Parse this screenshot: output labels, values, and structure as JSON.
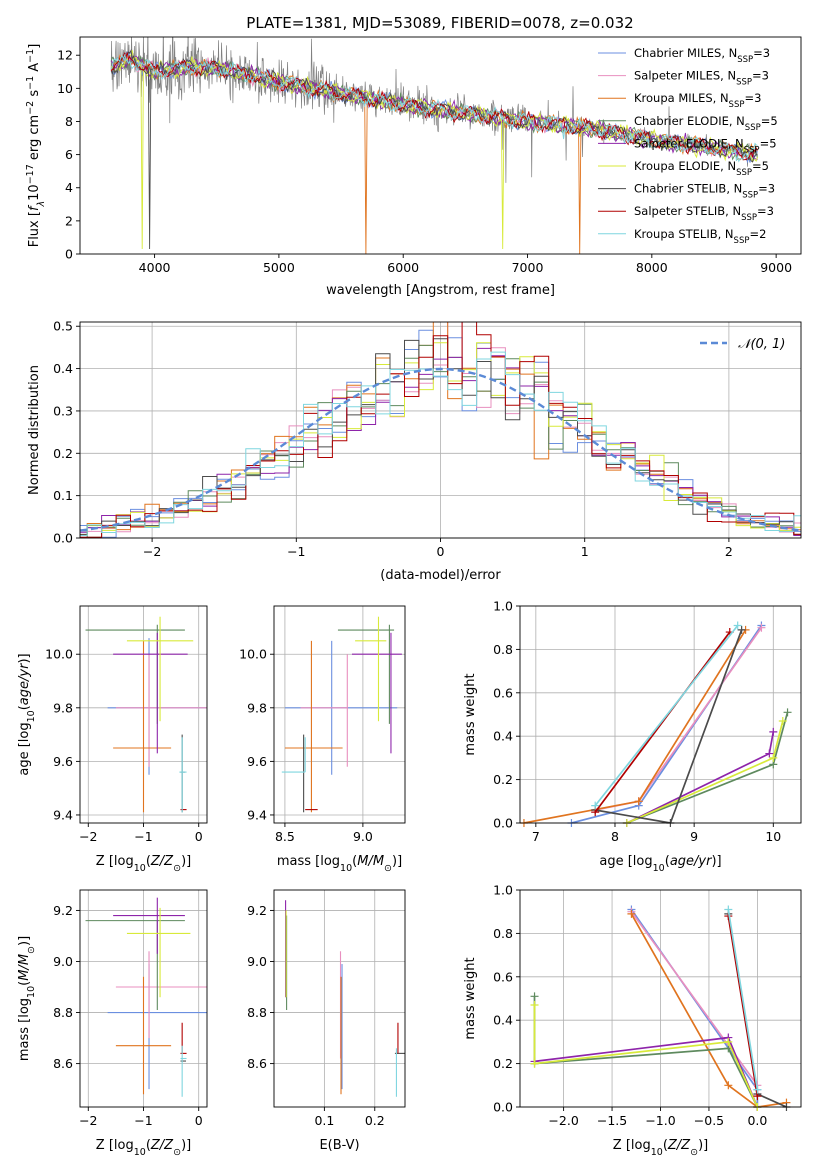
{
  "figure": {
    "title": "PLATE=1381, MJD=53089, FIBERID=0078, z=0.032"
  },
  "colors": {
    "Chabrier MILES": "#6b8fe0",
    "Salpeter MILES": "#e88fbf",
    "Kroupa MILES": "#e0741f",
    "Chabrier ELODIE": "#5e8a5e",
    "Salpeter ELODIE": "#8e24aa",
    "Kroupa ELODIE": "#d8ea3a",
    "Chabrier STELIB": "#4b4b4b",
    "Salpeter STELIB": "#b00000",
    "Kroupa STELIB": "#7fd6df",
    "data": "#808080",
    "normal": "#5b8ad6"
  },
  "chart_data": [
    {
      "id": "spectrum",
      "type": "line",
      "title": "PLATE=1381, MJD=53089, FIBERID=0078, z=0.032",
      "xlabel": "wavelength [Angstrom, rest frame]",
      "ylabel": "Flux [fλ10⁻¹⁷ erg cm⁻² s⁻¹ A⁻¹]",
      "xlim": [
        3400,
        9200
      ],
      "ylim": [
        0,
        13.1
      ],
      "xticks": [
        "4000",
        "5000",
        "6000",
        "7000",
        "8000",
        "9000"
      ],
      "yticks": [
        "0",
        "2",
        "4",
        "6",
        "8",
        "10",
        "12"
      ],
      "legend_position": "top-right",
      "legend": [
        {
          "label": "Chabrier MILES, N",
          "sub": "SSP",
          "tail": "=3"
        },
        {
          "label": "Salpeter MILES, N",
          "sub": "SSP",
          "tail": "=3"
        },
        {
          "label": "Kroupa MILES, N",
          "sub": "SSP",
          "tail": "=3"
        },
        {
          "label": "Chabrier ELODIE, N",
          "sub": "SSP",
          "tail": "=5"
        },
        {
          "label": "Salpeter ELODIE, N",
          "sub": "SSP",
          "tail": "=5"
        },
        {
          "label": "Kroupa ELODIE, N",
          "sub": "SSP",
          "tail": "=5"
        },
        {
          "label": "Chabrier STELIB, N",
          "sub": "SSP",
          "tail": "=3"
        },
        {
          "label": "Salpeter STELIB, N",
          "sub": "SSP",
          "tail": "=3"
        },
        {
          "label": "Kroupa STELIB, N",
          "sub": "SSP",
          "tail": "=2"
        }
      ],
      "continuum": [
        [
          3650,
          11.3
        ],
        [
          3800,
          11.8
        ],
        [
          4000,
          11.0
        ],
        [
          4300,
          11.3
        ],
        [
          4600,
          11.1
        ],
        [
          5000,
          10.4
        ],
        [
          5500,
          9.7
        ],
        [
          6000,
          9.0
        ],
        [
          6500,
          8.5
        ],
        [
          7000,
          8.0
        ],
        [
          7500,
          7.6
        ],
        [
          8000,
          6.9
        ],
        [
          8500,
          6.4
        ],
        [
          8850,
          6.0
        ]
      ]
    },
    {
      "id": "residuals",
      "type": "histogram",
      "xlabel": "(data-model)/error",
      "ylabel": "Normed distribution",
      "xlim": [
        -2.5,
        2.5
      ],
      "ylim": [
        0,
        0.51
      ],
      "xticks": [
        "−2",
        "−1",
        "0",
        "1",
        "2"
      ],
      "yticks": [
        "0.0",
        "0.1",
        "0.2",
        "0.3",
        "0.4",
        "0.5"
      ],
      "legend_position": "top-right",
      "legend": "𝒩(0, 1)",
      "bin_width": 0.1,
      "normal": {
        "mean": 0,
        "sigma": 1
      }
    },
    {
      "id": "age_vs_Z",
      "type": "errorbar",
      "xlabel": "Z [log₁₀(Z/Z⊙)]",
      "ylabel": "age  [log₁₀(age/yr)]",
      "xlim": [
        -2.15,
        0.15
      ],
      "ylim": [
        9.37,
        10.18
      ],
      "xticks": [
        "−2",
        "−1",
        "0"
      ],
      "yticks": [
        "9.4",
        "9.6",
        "9.8",
        "10.0"
      ],
      "points": [
        {
          "series": "Chabrier MILES",
          "x": -0.9,
          "xerr": [
            0.75,
            1.1
          ],
          "y": 9.8,
          "yerr": [
            0.25,
            0.26
          ]
        },
        {
          "series": "Salpeter MILES",
          "x": -0.9,
          "xerr": [
            0.6,
            1.1
          ],
          "y": 9.8,
          "yerr": [
            0.22,
            0.2
          ]
        },
        {
          "series": "Kroupa MILES",
          "x": -1.0,
          "xerr": [
            0.55,
            0.5
          ],
          "y": 9.65,
          "yerr": [
            0.24,
            0.4
          ]
        },
        {
          "series": "Chabrier ELODIE",
          "x": -0.75,
          "xerr": [
            1.3,
            0.5
          ],
          "y": 10.09,
          "yerr": [
            0.35,
            0.02
          ]
        },
        {
          "series": "Salpeter ELODIE",
          "x": -0.75,
          "xerr": [
            0.8,
            0.55
          ],
          "y": 10.0,
          "yerr": [
            0.37,
            0.08
          ]
        },
        {
          "series": "Kroupa ELODIE",
          "x": -0.7,
          "xerr": [
            0.6,
            0.6
          ],
          "y": 10.05,
          "yerr": [
            0.3,
            0.09
          ]
        },
        {
          "series": "Chabrier STELIB",
          "x": -0.3,
          "xerr": [
            0.03,
            0.05
          ],
          "y": 9.56,
          "yerr": [
            0.15,
            0.14
          ]
        },
        {
          "series": "Salpeter STELIB",
          "x": -0.3,
          "xerr": [
            0.03,
            0.08
          ],
          "y": 9.42,
          "yerr": [
            0.0,
            0.0
          ]
        },
        {
          "series": "Kroupa STELIB",
          "x": -0.3,
          "xerr": [
            0.05,
            0.08
          ],
          "y": 9.56,
          "yerr": [
            0.15,
            0.13
          ]
        }
      ]
    },
    {
      "id": "age_vs_mass",
      "type": "errorbar",
      "xlabel": "mass [log₁₀(M/M⊙)]",
      "xlim": [
        8.43,
        9.27
      ],
      "ylim": [
        9.37,
        10.18
      ],
      "xticks": [
        "8.5",
        "9.0"
      ],
      "yticks": [
        "9.4",
        "9.6",
        "9.8",
        "10.0"
      ],
      "points": [
        {
          "series": "Chabrier MILES",
          "x": 8.8,
          "xerr": [
            0.3,
            0.42
          ],
          "y": 9.8,
          "yerr": [
            0.25,
            0.25
          ]
        },
        {
          "series": "Salpeter MILES",
          "x": 8.9,
          "xerr": [
            0.3,
            0.0
          ],
          "y": 9.8,
          "yerr": [
            0.22,
            0.2
          ]
        },
        {
          "series": "Kroupa MILES",
          "x": 8.67,
          "xerr": [
            0.17,
            0.2
          ],
          "y": 9.65,
          "yerr": [
            0.24,
            0.4
          ]
        },
        {
          "series": "Chabrier ELODIE",
          "x": 9.17,
          "xerr": [
            0.33,
            0.03
          ],
          "y": 10.09,
          "yerr": [
            0.35,
            0.02
          ]
        },
        {
          "series": "Salpeter ELODIE",
          "x": 9.18,
          "xerr": [
            0.25,
            0.07
          ],
          "y": 10.0,
          "yerr": [
            0.37,
            0.08
          ]
        },
        {
          "series": "Kroupa ELODIE",
          "x": 9.1,
          "xerr": [
            0.15,
            0.05
          ],
          "y": 10.05,
          "yerr": [
            0.3,
            0.09
          ]
        },
        {
          "series": "Chabrier STELIB",
          "x": 8.62,
          "xerr": [
            0.0,
            0.0
          ],
          "y": 9.56,
          "yerr": [
            0.15,
            0.14
          ]
        },
        {
          "series": "Salpeter STELIB",
          "x": 8.63,
          "xerr": [
            0.0,
            0.08
          ],
          "y": 9.42,
          "yerr": [
            0.0,
            0.0
          ]
        },
        {
          "series": "Kroupa STELIB",
          "x": 8.63,
          "xerr": [
            0.15,
            0.0
          ],
          "y": 9.56,
          "yerr": [
            0.0,
            0.13
          ]
        }
      ]
    },
    {
      "id": "weight_vs_age",
      "type": "line",
      "xlabel": "age  [log₁₀(age/yr)]",
      "ylabel": "mass weight",
      "xlim": [
        6.8,
        10.35
      ],
      "ylim": [
        0,
        1.0
      ],
      "xticks": [
        "7",
        "8",
        "9",
        "10"
      ],
      "yticks": [
        "0.0",
        "0.2",
        "0.4",
        "0.6",
        "0.8",
        "1.0"
      ],
      "series": [
        {
          "name": "Chabrier MILES",
          "x": [
            7.45,
            8.3,
            9.85
          ],
          "y": [
            0.0,
            0.08,
            0.91
          ]
        },
        {
          "name": "Salpeter MILES",
          "x": [
            7.75,
            8.3,
            9.85
          ],
          "y": [
            0.06,
            0.1,
            0.9
          ]
        },
        {
          "name": "Kroupa MILES",
          "x": [
            6.85,
            8.3,
            9.65
          ],
          "y": [
            0.0,
            0.1,
            0.89
          ]
        },
        {
          "name": "Chabrier ELODIE",
          "x": [
            8.15,
            10.0,
            10.18
          ],
          "y": [
            0.0,
            0.27,
            0.51
          ]
        },
        {
          "name": "Salpeter ELODIE",
          "x": [
            8.15,
            9.95,
            10.0
          ],
          "y": [
            0.0,
            0.32,
            0.42
          ]
        },
        {
          "name": "Kroupa ELODIE",
          "x": [
            8.15,
            10.0,
            10.12
          ],
          "y": [
            0.0,
            0.3,
            0.47
          ]
        },
        {
          "name": "Chabrier STELIB",
          "x": [
            7.75,
            8.7,
            9.6
          ],
          "y": [
            0.06,
            0.0,
            0.89
          ]
        },
        {
          "name": "Salpeter STELIB",
          "x": [
            7.75,
            9.45
          ],
          "y": [
            0.05,
            0.88
          ]
        },
        {
          "name": "Kroupa STELIB",
          "x": [
            7.75,
            9.55
          ],
          "y": [
            0.08,
            0.91
          ]
        }
      ]
    },
    {
      "id": "mass_vs_Z",
      "type": "errorbar",
      "xlabel": "Z [log₁₀(Z/Z⊙)]",
      "ylabel": "mass [log₁₀(M/M⊙)]",
      "xlim": [
        -2.15,
        0.15
      ],
      "ylim": [
        8.43,
        9.28
      ],
      "xticks": [
        "−2",
        "−1",
        "0"
      ],
      "yticks": [
        "8.6",
        "8.8",
        "9.0",
        "9.2"
      ],
      "points": [
        {
          "series": "Chabrier MILES",
          "x": -0.9,
          "xerr": [
            0.75,
            1.1
          ],
          "y": 8.8,
          "yerr": [
            0.3,
            0.19
          ]
        },
        {
          "series": "Salpeter MILES",
          "x": -0.9,
          "xerr": [
            0.6,
            1.05
          ],
          "y": 8.9,
          "yerr": [
            0.2,
            0.14
          ]
        },
        {
          "series": "Kroupa MILES",
          "x": -1.0,
          "xerr": [
            0.5,
            0.5
          ],
          "y": 8.67,
          "yerr": [
            0.19,
            0.27
          ]
        },
        {
          "series": "Chabrier ELODIE",
          "x": -0.75,
          "xerr": [
            1.3,
            0.5
          ],
          "y": 9.16,
          "yerr": [
            0.35,
            0.0
          ]
        },
        {
          "series": "Salpeter ELODIE",
          "x": -0.75,
          "xerr": [
            0.8,
            0.5
          ],
          "y": 9.18,
          "yerr": [
            0.15,
            0.07
          ]
        },
        {
          "series": "Kroupa ELODIE",
          "x": -0.7,
          "xerr": [
            0.6,
            0.55
          ],
          "y": 9.11,
          "yerr": [
            0.25,
            0.1
          ]
        },
        {
          "series": "Chabrier STELIB",
          "x": -0.3,
          "xerr": [
            0.03,
            0.07
          ],
          "y": 8.61,
          "yerr": [
            0.0,
            0.0
          ]
        },
        {
          "series": "Salpeter STELIB",
          "x": -0.3,
          "xerr": [
            0.03,
            0.08
          ],
          "y": 8.64,
          "yerr": [
            0.0,
            0.12
          ]
        },
        {
          "series": "Kroupa STELIB",
          "x": -0.3,
          "xerr": [
            0.03,
            0.08
          ],
          "y": 8.62,
          "yerr": [
            0.15,
            0.05
          ]
        }
      ]
    },
    {
      "id": "mass_vs_EBV",
      "type": "errorbar",
      "xlabel": "E(B-V)",
      "xlim": [
        0.0,
        0.26
      ],
      "ylim": [
        8.43,
        9.28
      ],
      "xticks": [
        "0.1",
        "0.2"
      ],
      "yticks": [
        "8.6",
        "8.8",
        "9.0",
        "9.2"
      ],
      "points": [
        {
          "series": "Chabrier MILES",
          "x": 0.135,
          "y": 8.8,
          "yerr": [
            0.3,
            0.19
          ]
        },
        {
          "series": "Salpeter MILES",
          "x": 0.132,
          "y": 8.9,
          "yerr": [
            0.28,
            0.14
          ]
        },
        {
          "series": "Kroupa MILES",
          "x": 0.133,
          "y": 8.67,
          "yerr": [
            0.19,
            0.27
          ]
        },
        {
          "series": "Chabrier ELODIE",
          "x": 0.025,
          "y": 9.0,
          "yerr": [
            0.19,
            0.18
          ]
        },
        {
          "series": "Salpeter ELODIE",
          "x": 0.023,
          "y": 9.1,
          "yerr": [
            0.24,
            0.14
          ]
        },
        {
          "series": "Kroupa ELODIE",
          "x": 0.024,
          "y": 9.0,
          "yerr": [
            0.14,
            0.2
          ]
        },
        {
          "series": "Chabrier STELIB",
          "x": 0.244,
          "y": 8.64,
          "yerr": [
            0.0,
            0.0
          ]
        },
        {
          "series": "Salpeter STELIB",
          "x": 0.246,
          "y": 8.64,
          "yerr": [
            0.0,
            0.12
          ]
        },
        {
          "series": "Kroupa STELIB",
          "x": 0.243,
          "y": 8.6,
          "yerr": [
            0.13,
            0.06
          ]
        }
      ]
    },
    {
      "id": "weight_vs_Z",
      "type": "line",
      "xlabel": "Z [log₁₀(Z/Z⊙)]",
      "ylabel": "mass weight",
      "xlim": [
        -2.45,
        0.45
      ],
      "ylim": [
        0,
        1.0
      ],
      "xticks": [
        "−2.0",
        "−1.5",
        "−1.0",
        "−0.5",
        "0.0"
      ],
      "yticks": [
        "0.0",
        "0.2",
        "0.4",
        "0.6",
        "0.8",
        "1.0"
      ],
      "series": [
        {
          "name": "Chabrier MILES",
          "x": [
            -1.3,
            0.0,
            0.0
          ],
          "y": [
            0.91,
            0.08,
            0.0
          ]
        },
        {
          "name": "Salpeter MILES",
          "x": [
            -1.3,
            0.0,
            0.0
          ],
          "y": [
            0.9,
            0.1,
            0.06
          ]
        },
        {
          "name": "Kroupa MILES",
          "x": [
            -1.3,
            -0.3,
            0.0,
            0.3
          ],
          "y": [
            0.89,
            0.1,
            0.0,
            0.02
          ]
        },
        {
          "name": "Chabrier ELODIE",
          "x": [
            -2.3,
            -2.3,
            -0.3,
            0.0
          ],
          "y": [
            0.51,
            0.2,
            0.27,
            0.0
          ]
        },
        {
          "name": "Salpeter ELODIE",
          "x": [
            -2.3,
            -0.3,
            0.0
          ],
          "y": [
            0.21,
            0.32,
            0.0
          ]
        },
        {
          "name": "Kroupa ELODIE",
          "x": [
            -2.3,
            -2.3,
            -0.3,
            0.0
          ],
          "y": [
            0.47,
            0.2,
            0.3,
            0.0
          ]
        },
        {
          "name": "Chabrier STELIB",
          "x": [
            -0.3,
            0.0,
            0.3
          ],
          "y": [
            0.89,
            0.06,
            0.0
          ]
        },
        {
          "name": "Salpeter STELIB",
          "x": [
            -0.3,
            0.0
          ],
          "y": [
            0.88,
            0.05
          ]
        },
        {
          "name": "Kroupa STELIB",
          "x": [
            -0.3,
            0.0
          ],
          "y": [
            0.91,
            0.08
          ]
        }
      ]
    }
  ]
}
